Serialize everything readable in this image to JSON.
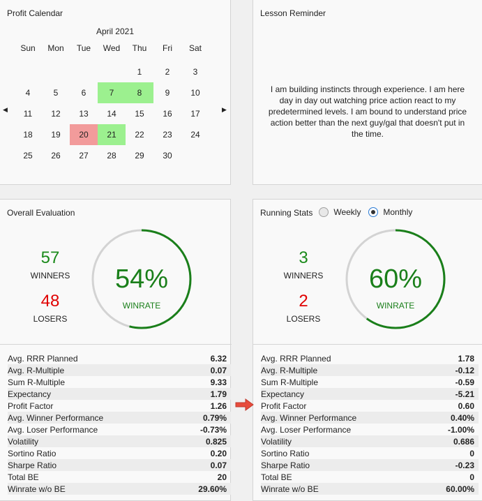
{
  "calendar": {
    "title": "Profit Calendar",
    "month": "April 2021",
    "weekdays": [
      "Sun",
      "Mon",
      "Tue",
      "Wed",
      "Thu",
      "Fri",
      "Sat"
    ],
    "weeks": [
      [
        {
          "d": ""
        },
        {
          "d": ""
        },
        {
          "d": ""
        },
        {
          "d": ""
        },
        {
          "d": "1"
        },
        {
          "d": "2"
        },
        {
          "d": "3"
        }
      ],
      [
        {
          "d": "4"
        },
        {
          "d": "5"
        },
        {
          "d": "6"
        },
        {
          "d": "7",
          "s": "green"
        },
        {
          "d": "8",
          "s": "green"
        },
        {
          "d": "9"
        },
        {
          "d": "10"
        }
      ],
      [
        {
          "d": "11"
        },
        {
          "d": "12"
        },
        {
          "d": "13"
        },
        {
          "d": "14"
        },
        {
          "d": "15"
        },
        {
          "d": "16"
        },
        {
          "d": "17"
        }
      ],
      [
        {
          "d": "18"
        },
        {
          "d": "19"
        },
        {
          "d": "20",
          "s": "red"
        },
        {
          "d": "21",
          "s": "green"
        },
        {
          "d": "22"
        },
        {
          "d": "23"
        },
        {
          "d": "24"
        }
      ],
      [
        {
          "d": "25"
        },
        {
          "d": "26"
        },
        {
          "d": "27"
        },
        {
          "d": "28"
        },
        {
          "d": "29"
        },
        {
          "d": "30"
        },
        {
          "d": ""
        }
      ]
    ],
    "prev_icon": "triangle-left-icon",
    "next_icon": "triangle-right-icon"
  },
  "lesson": {
    "title": "Lesson Reminder",
    "text": "I am building instincts through experience. I am here day in day out watching price action react to my predetermined levels. I am bound to understand price action better than the next guy/gal that doesn't put in the time."
  },
  "overall": {
    "title": "Overall Evaluation",
    "winners": "57",
    "winners_label": "WINNERS",
    "losers": "48",
    "losers_label": "LOSERS",
    "winrate_pct": "54%",
    "winrate_fraction": 0.54,
    "winrate_label": "WINRATE",
    "stats": [
      {
        "label": "Avg. RRR Planned",
        "value": "6.32"
      },
      {
        "label": "Avg. R-Multiple",
        "value": "0.07"
      },
      {
        "label": "Sum R-Multiple",
        "value": "9.33"
      },
      {
        "label": "Expectancy",
        "value": "1.79"
      },
      {
        "label": "Profit Factor",
        "value": "1.26"
      },
      {
        "label": "Avg. Winner Performance",
        "value": "0.79%"
      },
      {
        "label": "Avg. Loser Performance",
        "value": "-0.73%"
      },
      {
        "label": "Volatility",
        "value": "0.825"
      },
      {
        "label": "Sortino Ratio",
        "value": "0.20"
      },
      {
        "label": "Sharpe Ratio",
        "value": "0.07"
      },
      {
        "label": "Total BE",
        "value": "20"
      },
      {
        "label": "Winrate w/o BE",
        "value": "29.60%"
      }
    ]
  },
  "running": {
    "title": "Running Stats",
    "option_weekly": "Weekly",
    "option_monthly": "Monthly",
    "selected": "Monthly",
    "winners": "3",
    "winners_label": "WINNERS",
    "losers": "2",
    "losers_label": "LOSERS",
    "winrate_pct": "60%",
    "winrate_fraction": 0.6,
    "winrate_label": "WINRATE",
    "stats": [
      {
        "label": "Avg. RRR Planned",
        "value": "1.78"
      },
      {
        "label": "Avg. R-Multiple",
        "value": "-0.12"
      },
      {
        "label": "Sum R-Multiple",
        "value": "-0.59"
      },
      {
        "label": "Expectancy",
        "value": "-5.21"
      },
      {
        "label": "Profit Factor",
        "value": "0.60"
      },
      {
        "label": "Avg. Winner Performance",
        "value": "0.40%"
      },
      {
        "label": "Avg. Loser Performance",
        "value": "-1.00%"
      },
      {
        "label": "Volatility",
        "value": "0.686"
      },
      {
        "label": "Sortino Ratio",
        "value": "0"
      },
      {
        "label": "Sharpe Ratio",
        "value": "-0.23"
      },
      {
        "label": "Total BE",
        "value": "0"
      },
      {
        "label": "Winrate w/o BE",
        "value": "60.00%"
      }
    ]
  },
  "colors": {
    "green_day": "#9cf08f",
    "red_day": "#f29b9b",
    "ring_green": "#1a7f1a",
    "ring_track": "#d3d3d3",
    "winners": "#1a8a1a",
    "losers": "#e00000",
    "arrow": "#e74c3c"
  },
  "annotation_icon": "red-arrow-icon"
}
